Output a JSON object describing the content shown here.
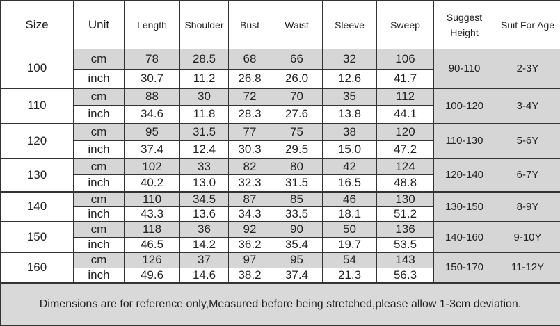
{
  "headers": [
    "Size",
    "Unit",
    "Length",
    "Shoulder",
    "Bust",
    "Waist",
    "Sleeve",
    "Sweep",
    "Suggest Height",
    "Suit For Age"
  ],
  "rows": [
    {
      "size": "100",
      "cm": [
        "78",
        "28.5",
        "68",
        "66",
        "32",
        "106"
      ],
      "inch": [
        "30.7",
        "11.2",
        "26.8",
        "26.0",
        "12.6",
        "41.7"
      ],
      "height": "90-110",
      "age": "2-3Y"
    },
    {
      "size": "110",
      "cm": [
        "88",
        "30",
        "72",
        "70",
        "35",
        "112"
      ],
      "inch": [
        "34.6",
        "11.8",
        "28.3",
        "27.6",
        "13.8",
        "44.1"
      ],
      "height": "100-120",
      "age": "3-4Y"
    },
    {
      "size": "120",
      "cm": [
        "95",
        "31.5",
        "77",
        "75",
        "38",
        "120"
      ],
      "inch": [
        "37.4",
        "12.4",
        "30.3",
        "29.5",
        "15.0",
        "47.2"
      ],
      "height": "110-130",
      "age": "5-6Y"
    },
    {
      "size": "130",
      "cm": [
        "102",
        "33",
        "82",
        "80",
        "42",
        "124"
      ],
      "inch": [
        "40.2",
        "13.0",
        "32.3",
        "31.5",
        "16.5",
        "48.8"
      ],
      "height": "120-140",
      "age": "6-7Y"
    },
    {
      "size": "140",
      "cm": [
        "110",
        "34.5",
        "87",
        "85",
        "46",
        "130"
      ],
      "inch": [
        "43.3",
        "13.6",
        "34.3",
        "33.5",
        "18.1",
        "51.2"
      ],
      "height": "130-150",
      "age": "8-9Y"
    },
    {
      "size": "150",
      "cm": [
        "118",
        "36",
        "92",
        "90",
        "50",
        "136"
      ],
      "inch": [
        "46.5",
        "14.2",
        "36.2",
        "35.4",
        "19.7",
        "53.5"
      ],
      "height": "140-160",
      "age": "9-10Y"
    },
    {
      "size": "160",
      "cm": [
        "126",
        "37",
        "97",
        "95",
        "54",
        "143"
      ],
      "inch": [
        "49.6",
        "14.6",
        "38.2",
        "37.4",
        "21.3",
        "56.3"
      ],
      "height": "150-170",
      "age": "11-12Y"
    }
  ],
  "units": {
    "cm": "cm",
    "inch": "inch"
  },
  "footer": "Dimensions are for reference only,Measured before being stretched,please allow 1-3cm deviation.",
  "colors": {
    "shaded": "#d6d6d6",
    "footer": "#d9d9d9",
    "border": "#333333"
  }
}
